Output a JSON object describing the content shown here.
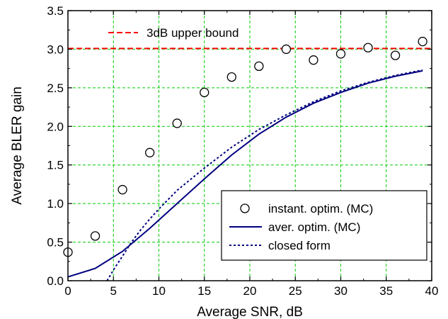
{
  "chart_data": {
    "type": "scatter",
    "xlabel": "Average SNR, dB",
    "ylabel": "Average BLER gain",
    "xlim": [
      0,
      40
    ],
    "ylim": [
      0.0,
      3.5
    ],
    "x_ticks": [
      "0",
      "5",
      "10",
      "15",
      "20",
      "25",
      "30",
      "35",
      "40"
    ],
    "y_ticks": [
      "0.0",
      "0.5",
      "1.0",
      "1.5",
      "2.0",
      "2.5",
      "3.0",
      "3.5"
    ],
    "grid": true,
    "grid_color": "#00cc00",
    "legend_position": "lower-right",
    "upper_bound": {
      "name": "3dB upper bound",
      "value": 3.01,
      "color": "#ff0000",
      "label_position": "top-left"
    },
    "series": [
      {
        "name": "instant. optim. (MC)",
        "style": "circles",
        "color": "#000000",
        "x": [
          0,
          3,
          6,
          9,
          12,
          15,
          18,
          21,
          24,
          27,
          30,
          33,
          36,
          39
        ],
        "y": [
          0.37,
          0.58,
          1.18,
          1.66,
          2.04,
          2.44,
          2.64,
          2.78,
          3.0,
          2.86,
          2.94,
          3.02,
          2.92,
          3.1
        ]
      },
      {
        "name": "aver. optim. (MC)",
        "style": "solid",
        "color": "#000080",
        "x": [
          0,
          3,
          6,
          9,
          12,
          15,
          18,
          21,
          24,
          27,
          30,
          33,
          36,
          39
        ],
        "y": [
          0.05,
          0.16,
          0.38,
          0.68,
          1.0,
          1.32,
          1.63,
          1.9,
          2.12,
          2.3,
          2.44,
          2.56,
          2.65,
          2.72
        ]
      },
      {
        "name": "closed form",
        "style": "dotted",
        "color": "#000080",
        "x": [
          4.3,
          5,
          6,
          7,
          8,
          9,
          10,
          12,
          15,
          18,
          21,
          24,
          27,
          30,
          33,
          36,
          39
        ],
        "y": [
          0.0,
          0.14,
          0.32,
          0.5,
          0.66,
          0.8,
          0.93,
          1.17,
          1.46,
          1.73,
          1.96,
          2.15,
          2.32,
          2.46,
          2.57,
          2.66,
          2.73
        ]
      }
    ]
  }
}
